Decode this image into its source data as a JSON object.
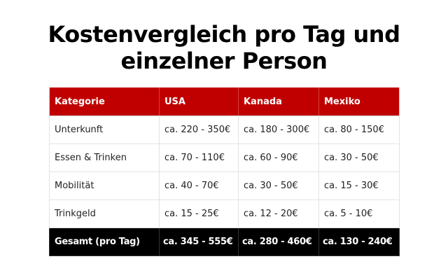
{
  "title": {
    "line1": "Kostenvergleich pro Tag und",
    "line2": "einzelner Person"
  },
  "table": {
    "headers": [
      "Kategorie",
      "USA",
      "Kanada",
      "Mexiko"
    ],
    "rows": [
      [
        "Unterkunft",
        "ca. 220 - 350€",
        "ca. 180 - 300€",
        "ca. 80 - 150€"
      ],
      [
        "Essen & Trinken",
        "ca. 70 - 110€",
        "ca. 60 - 90€",
        "ca. 30 - 50€"
      ],
      [
        "Mobilität",
        "ca. 40 - 70€",
        "ca. 30 - 50€",
        "ca. 15 - 30€"
      ],
      [
        "Trinkgeld",
        "ca. 15 - 25€",
        "ca. 12 - 20€",
        "ca. 5 - 10€"
      ]
    ],
    "total": [
      "Gesamt (pro Tag)",
      "ca. 345 - 555€",
      "ca. 280 - 460€",
      "ca. 130 - 240€"
    ]
  },
  "colors": {
    "header_background": "#c00000",
    "total_background": "#000000"
  }
}
